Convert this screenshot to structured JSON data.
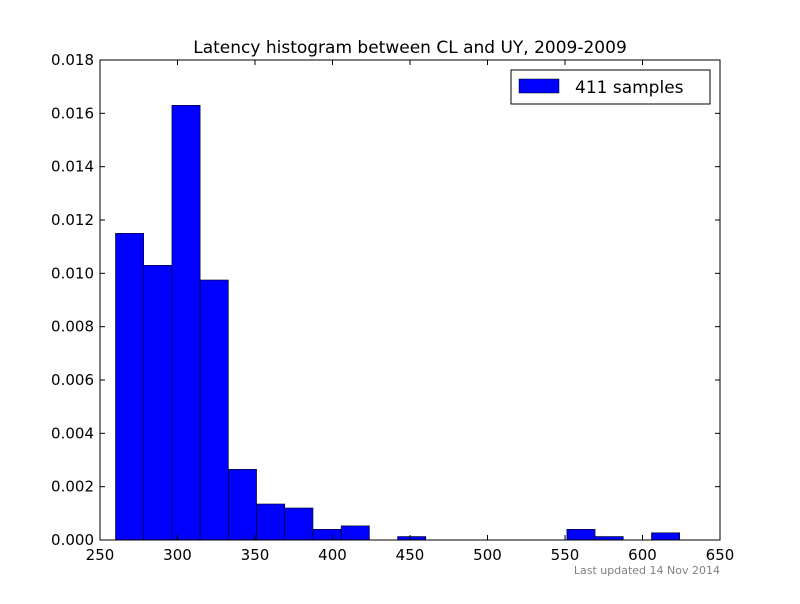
{
  "chart_data": {
    "type": "bar",
    "title": "Latency histogram between CL and UY, 2009-2009",
    "xlabel": "",
    "ylabel": "",
    "xlim": [
      250,
      650
    ],
    "ylim": [
      0,
      0.018
    ],
    "x_ticks": [
      "250",
      "300",
      "350",
      "400",
      "450",
      "500",
      "550",
      "600",
      "650"
    ],
    "y_ticks": [
      "0.000",
      "0.002",
      "0.004",
      "0.006",
      "0.008",
      "0.010",
      "0.012",
      "0.014",
      "0.016",
      "0.018"
    ],
    "grid": false,
    "legend": {
      "placement": "top-right",
      "entries": [
        "411 samples"
      ]
    },
    "bar_color": "#0000ff",
    "bin_edges": [
      260.0,
      278.2,
      296.4,
      314.6,
      332.8,
      351.0,
      369.2,
      387.4,
      405.6,
      423.8,
      442.0,
      460.2,
      478.4,
      496.6,
      514.8,
      533.0,
      551.2,
      569.4,
      587.6,
      605.8,
      624.0
    ],
    "values": [
      0.0115,
      0.0103,
      0.0163,
      0.00975,
      0.00265,
      0.00135,
      0.0012,
      0.0004,
      0.00053,
      0.0,
      0.00013,
      0.0,
      0.0,
      0.0,
      0.0,
      0.0,
      0.0004,
      0.00013,
      0.0,
      0.00027
    ],
    "footer": "Last updated 14 Nov 2014"
  }
}
